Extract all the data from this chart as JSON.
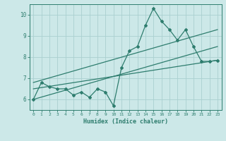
{
  "x_data": [
    0,
    1,
    2,
    3,
    4,
    5,
    6,
    7,
    8,
    9,
    10,
    11,
    12,
    13,
    14,
    15,
    16,
    17,
    18,
    19,
    20,
    21,
    22,
    23
  ],
  "y_data": [
    6.0,
    6.8,
    6.6,
    6.5,
    6.5,
    6.2,
    6.35,
    6.1,
    6.5,
    6.35,
    5.7,
    7.5,
    8.3,
    8.5,
    9.5,
    10.3,
    9.7,
    9.3,
    8.8,
    9.3,
    8.5,
    7.8,
    7.8,
    7.85
  ],
  "trend1_x": [
    0,
    23
  ],
  "trend1_y": [
    6.0,
    8.5
  ],
  "trend2_x": [
    0,
    23
  ],
  "trend2_y": [
    6.5,
    7.85
  ],
  "trend3_x": [
    0,
    23
  ],
  "trend3_y": [
    6.8,
    9.3
  ],
  "line_color": "#2e7d6e",
  "bg_color": "#cce8e8",
  "grid_color": "#aad0d0",
  "xlabel": "Humidex (Indice chaleur)",
  "ylim": [
    5.5,
    10.5
  ],
  "xlim": [
    -0.5,
    23.5
  ],
  "xticks": [
    0,
    1,
    2,
    3,
    4,
    5,
    6,
    7,
    8,
    9,
    10,
    11,
    12,
    13,
    14,
    15,
    16,
    17,
    18,
    19,
    20,
    21,
    22,
    23
  ],
  "yticks": [
    6,
    7,
    8,
    9,
    10
  ]
}
